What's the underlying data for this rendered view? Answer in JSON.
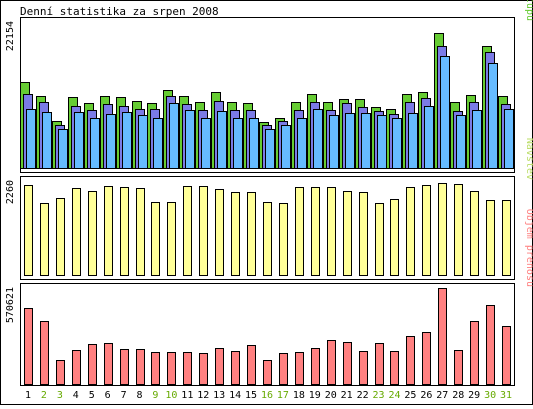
{
  "chart_data": {
    "type": "bar",
    "title": "Denní statistika za srpen 2008",
    "categories": [
      "1",
      "2",
      "3",
      "4",
      "5",
      "6",
      "7",
      "8",
      "9",
      "10",
      "11",
      "12",
      "13",
      "14",
      "15",
      "16",
      "17",
      "18",
      "19",
      "20",
      "21",
      "22",
      "23",
      "24",
      "25",
      "26",
      "27",
      "28",
      "29",
      "30",
      "31"
    ],
    "weekend_days": [
      "2",
      "3",
      "9",
      "10",
      "16",
      "17",
      "23",
      "24",
      "30",
      "31"
    ],
    "colors": {
      "frame": "#000000",
      "prist": "#66cc33",
      "soub": "#7b7be6",
      "strank": "#66bbff",
      "navstevy": "#ffff99",
      "objem": "#ff8080",
      "weekday_label": "#000000",
      "weekend_label": "#66aa00"
    },
    "panels": [
      {
        "id": "traffic",
        "max_label": "22154",
        "legend": [
          {
            "text": "Stránek",
            "color": "#66bbff"
          },
          {
            "text": "/",
            "color": "#888888"
          },
          {
            "text": "Souborů",
            "color": "#7b7be6"
          },
          {
            "text": "/",
            "color": "#888888"
          },
          {
            "text": "Přístupů",
            "color": "#66cc33"
          }
        ],
        "ymax": 22154,
        "series": [
          {
            "name": "Přístupů",
            "color": "#66cc33",
            "values": [
              13100,
              10900,
              7100,
              10800,
              9800,
              10900,
              10800,
              10200,
              9900,
              11850,
              10900,
              10000,
              11550,
              9950,
              9800,
              7050,
              7650,
              9950,
              11200,
              9950,
              10450,
              10400,
              9250,
              8950,
              11250,
              11550,
              20550,
              10000,
              11050,
              18500,
              10900
            ]
          },
          {
            "name": "Souborů",
            "color": "#7b7be6",
            "values": [
              11250,
              10000,
              6550,
              9350,
              8750,
              9700,
              9350,
              9000,
              8950,
              10850,
              9700,
              8750,
              10100,
              8750,
              8750,
              6600,
              7100,
              8750,
              9950,
              8750,
              9800,
              9250,
              8700,
              8150,
              10000,
              10550,
              18500,
              8700,
              10000,
              17550,
              9700
            ]
          },
          {
            "name": "Stránek",
            "color": "#66bbff",
            "values": [
              9000,
              8500,
              5850,
              8500,
              7650,
              8250,
              8500,
              8050,
              7600,
              9900,
              8750,
              7650,
              8700,
              7650,
              7650,
              5850,
              6450,
              7650,
              9000,
              8050,
              8400,
              8300,
              8100,
              7650,
              8400,
              9400,
              17050,
              8050,
              8800,
              16000,
              9000
            ]
          }
        ]
      },
      {
        "id": "visits",
        "max_label": "2260",
        "legend": [
          {
            "text": "Návštěv",
            "color": "#bbdd66"
          }
        ],
        "ymax": 2260,
        "series": [
          {
            "name": "Návštěv",
            "color": "#ffff99",
            "values": [
              2170,
              1720,
              1850,
              2080,
              2030,
              2130,
              2110,
              2080,
              1750,
              1750,
              2140,
              2130,
              2060,
              2000,
              1990,
              1750,
              1720,
              2110,
              2120,
              2120,
              2010,
              1990,
              1720,
              1830,
              2120,
              2170,
              2220,
              2190,
              2010,
              1810,
              1810
            ]
          }
        ]
      },
      {
        "id": "volume",
        "max_label": "570621",
        "legend": [
          {
            "text": "Objem přenosu",
            "color": "#ff8080"
          }
        ],
        "ymax": 570621,
        "series": [
          {
            "name": "Objem přenosu",
            "color": "#ff8080",
            "values": [
              450000,
              375000,
              140000,
              200000,
              235000,
              245000,
              210000,
              210000,
              190000,
              190000,
              190000,
              185000,
              215000,
              195000,
              230000,
              145000,
              185000,
              190000,
              215000,
              260000,
              250000,
              195000,
              245000,
              195000,
              285000,
              310000,
              570621,
              205000,
              375000,
              470000,
              345000
            ]
          }
        ]
      }
    ]
  }
}
